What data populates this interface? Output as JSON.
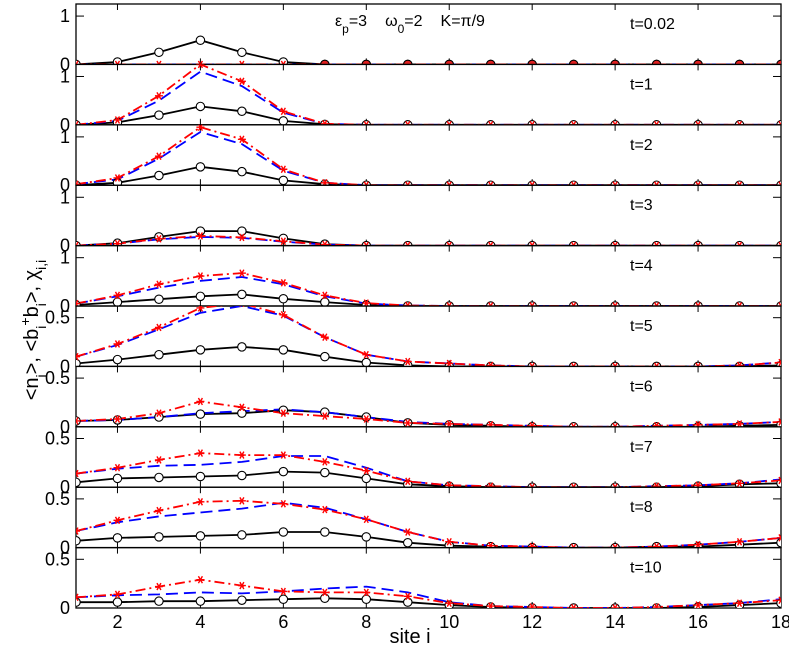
{
  "chart_data": {
    "type": "line",
    "xlabel": "site i",
    "ylabel_parts": {
      "n": "<n",
      "n_sub": "i",
      "n_close": ">,  <b",
      "b_sub1": "i",
      "b_sup": "+",
      "b_mid": "b",
      "b_sub2": "i",
      "b_close": ">,  χ",
      "chi_sub": "i,i"
    },
    "annotation": {
      "eps": "ε",
      "eps_sub": "p",
      "eps_val": "=3",
      "omega": "ω",
      "omega_sub": "0",
      "omega_val": "=2",
      "k": "K=π/9"
    },
    "x": [
      1,
      2,
      3,
      4,
      5,
      6,
      7,
      8,
      9,
      10,
      11,
      12,
      13,
      14,
      15,
      16,
      17,
      18
    ],
    "x_ticks": [
      2,
      4,
      6,
      8,
      10,
      12,
      14,
      16,
      18
    ],
    "xlim": [
      1,
      18
    ],
    "panels": [
      {
        "label": "t=0.02",
        "ylim": [
          0,
          1.25
        ],
        "y_ticks": [
          0,
          1
        ],
        "n": [
          0,
          0.05,
          0.25,
          0.5,
          0.25,
          0.05,
          0,
          0,
          0,
          0,
          0,
          0,
          0,
          0,
          0,
          0,
          0,
          0
        ],
        "bb": [
          0,
          0,
          0,
          0,
          0,
          0,
          0,
          0,
          0,
          0,
          0,
          0,
          0,
          0,
          0,
          0,
          0,
          0
        ],
        "chi": [
          0,
          0,
          0,
          0,
          0,
          0,
          0,
          0,
          0,
          0,
          0,
          0,
          0,
          0,
          0,
          0,
          0,
          0
        ]
      },
      {
        "label": "t=1",
        "ylim": [
          0,
          1.25
        ],
        "y_ticks": [
          0,
          1
        ],
        "n": [
          0,
          0.05,
          0.2,
          0.38,
          0.28,
          0.08,
          0.01,
          0,
          0,
          0,
          0,
          0,
          0,
          0,
          0,
          0,
          0,
          0
        ],
        "bb": [
          0,
          0.08,
          0.5,
          1.1,
          0.8,
          0.25,
          0.02,
          0,
          0,
          0,
          0,
          0,
          0,
          0,
          0,
          0,
          0,
          0
        ],
        "chi": [
          0,
          0.1,
          0.6,
          1.25,
          0.9,
          0.28,
          0.02,
          0,
          0,
          0,
          0,
          0,
          0,
          0,
          0,
          0,
          0,
          0
        ]
      },
      {
        "label": "t=2",
        "ylim": [
          0,
          1.25
        ],
        "y_ticks": [
          0,
          1
        ],
        "n": [
          0,
          0.05,
          0.2,
          0.38,
          0.28,
          0.1,
          0.02,
          0,
          0,
          0,
          0,
          0,
          0,
          0,
          0,
          0,
          0,
          0
        ],
        "bb": [
          0.02,
          0.12,
          0.55,
          1.1,
          0.85,
          0.3,
          0.05,
          0,
          0,
          0,
          0,
          0,
          0,
          0,
          0,
          0,
          0,
          0
        ],
        "chi": [
          0.02,
          0.15,
          0.6,
          1.2,
          0.95,
          0.33,
          0.05,
          0,
          0,
          0,
          0,
          0,
          0,
          0,
          0,
          0,
          0,
          0
        ]
      },
      {
        "label": "t=3",
        "ylim": [
          0,
          1.25
        ],
        "y_ticks": [
          0,
          1
        ],
        "n": [
          0,
          0.05,
          0.18,
          0.3,
          0.3,
          0.15,
          0.03,
          0,
          0,
          0,
          0,
          0,
          0,
          0,
          0,
          0,
          0,
          0
        ],
        "bb": [
          0,
          0.04,
          0.13,
          0.18,
          0.16,
          0.08,
          0.02,
          0,
          0,
          0,
          0,
          0,
          0,
          0,
          0,
          0,
          0,
          0
        ],
        "chi": [
          0,
          0.04,
          0.14,
          0.2,
          0.17,
          0.09,
          0.02,
          0,
          0,
          0,
          0,
          0,
          0,
          0,
          0,
          0,
          0,
          0
        ]
      },
      {
        "label": "t=4",
        "ylim": [
          0,
          1.25
        ],
        "y_ticks": [
          0,
          1
        ],
        "n": [
          0.02,
          0.08,
          0.14,
          0.2,
          0.24,
          0.15,
          0.08,
          0.02,
          0,
          0,
          0,
          0,
          0,
          0,
          0,
          0,
          0,
          0
        ],
        "bb": [
          0.05,
          0.2,
          0.38,
          0.52,
          0.6,
          0.45,
          0.2,
          0.05,
          0.01,
          0,
          0,
          0,
          0,
          0,
          0,
          0,
          0,
          0
        ],
        "chi": [
          0.05,
          0.22,
          0.45,
          0.62,
          0.68,
          0.48,
          0.22,
          0.06,
          0.01,
          0,
          0,
          0,
          0,
          0,
          0,
          0,
          0,
          0
        ]
      },
      {
        "label": "t=5",
        "ylim": [
          0,
          0.62
        ],
        "y_ticks": [
          0,
          0.5
        ],
        "n": [
          0.03,
          0.07,
          0.12,
          0.17,
          0.2,
          0.17,
          0.1,
          0.04,
          0.01,
          0,
          0,
          0,
          0,
          0,
          0,
          0,
          0,
          0.01
        ],
        "bb": [
          0.1,
          0.22,
          0.38,
          0.55,
          0.62,
          0.52,
          0.3,
          0.12,
          0.05,
          0.03,
          0.01,
          0,
          0,
          0,
          0,
          0,
          0.01,
          0.04
        ],
        "chi": [
          0.1,
          0.23,
          0.4,
          0.6,
          0.65,
          0.53,
          0.3,
          0.12,
          0.05,
          0.03,
          0.01,
          0,
          0,
          0,
          0,
          0,
          0.01,
          0.04
        ]
      },
      {
        "label": "t=6",
        "ylim": [
          0,
          0.62
        ],
        "y_ticks": [
          0,
          0.5
        ],
        "n": [
          0.06,
          0.07,
          0.1,
          0.13,
          0.14,
          0.17,
          0.15,
          0.1,
          0.04,
          0.02,
          0.01,
          0,
          0,
          0,
          0,
          0,
          0.01,
          0.02
        ],
        "bb": [
          0.06,
          0.07,
          0.1,
          0.14,
          0.16,
          0.18,
          0.15,
          0.1,
          0.05,
          0.03,
          0.02,
          0.01,
          0,
          0,
          0.01,
          0.02,
          0.03,
          0.05
        ],
        "chi": [
          0.06,
          0.08,
          0.14,
          0.26,
          0.2,
          0.14,
          0.11,
          0.08,
          0.04,
          0.03,
          0.02,
          0.01,
          0,
          0,
          0.01,
          0.02,
          0.03,
          0.05
        ]
      },
      {
        "label": "t=7",
        "ylim": [
          0,
          0.62
        ],
        "y_ticks": [
          0,
          0.5
        ],
        "n": [
          0.05,
          0.09,
          0.1,
          0.11,
          0.12,
          0.16,
          0.15,
          0.09,
          0.03,
          0.01,
          0,
          0,
          0,
          0,
          0,
          0.01,
          0.03,
          0.04
        ],
        "bb": [
          0.14,
          0.19,
          0.22,
          0.23,
          0.26,
          0.32,
          0.32,
          0.2,
          0.06,
          0.02,
          0.01,
          0,
          0,
          0,
          0.01,
          0.02,
          0.04,
          0.08
        ],
        "chi": [
          0.14,
          0.2,
          0.28,
          0.35,
          0.33,
          0.33,
          0.26,
          0.17,
          0.06,
          0.02,
          0.01,
          0,
          0,
          0,
          0.01,
          0.02,
          0.04,
          0.07
        ]
      },
      {
        "label": "t=8",
        "ylim": [
          0,
          0.62
        ],
        "y_ticks": [
          0,
          0.5
        ],
        "n": [
          0.07,
          0.1,
          0.11,
          0.12,
          0.13,
          0.16,
          0.16,
          0.11,
          0.05,
          0.02,
          0.01,
          0,
          0,
          0,
          0.01,
          0.01,
          0.03,
          0.05
        ],
        "bb": [
          0.17,
          0.26,
          0.32,
          0.36,
          0.4,
          0.46,
          0.41,
          0.29,
          0.16,
          0.06,
          0.02,
          0.01,
          0,
          0,
          0.01,
          0.03,
          0.06,
          0.1
        ],
        "chi": [
          0.17,
          0.28,
          0.38,
          0.47,
          0.48,
          0.45,
          0.39,
          0.29,
          0.16,
          0.06,
          0.02,
          0.01,
          0,
          0,
          0.01,
          0.03,
          0.06,
          0.1
        ]
      },
      {
        "label": "t=10",
        "ylim": [
          0,
          0.62
        ],
        "y_ticks": [
          0,
          0.5
        ],
        "n": [
          0.06,
          0.06,
          0.07,
          0.07,
          0.08,
          0.09,
          0.1,
          0.09,
          0.06,
          0.03,
          0.01,
          0,
          0,
          0,
          0,
          0.01,
          0.03,
          0.05
        ],
        "bb": [
          0.11,
          0.13,
          0.14,
          0.16,
          0.15,
          0.17,
          0.2,
          0.22,
          0.16,
          0.06,
          0.02,
          0.01,
          0,
          0,
          0.01,
          0.03,
          0.05,
          0.09
        ],
        "chi": [
          0.11,
          0.14,
          0.22,
          0.29,
          0.23,
          0.17,
          0.16,
          0.16,
          0.12,
          0.05,
          0.02,
          0.01,
          0,
          0,
          0.01,
          0.03,
          0.05,
          0.08
        ]
      }
    ],
    "series": [
      {
        "key": "n",
        "color": "#000000",
        "style": "solid",
        "marker": "open-circle"
      },
      {
        "key": "bb",
        "color": "#0000ff",
        "style": "dashed",
        "marker": "none"
      },
      {
        "key": "chi",
        "color": "#ff0000",
        "style": "dashdot",
        "marker": "star"
      }
    ],
    "filled_circle_color": "#e02020"
  }
}
